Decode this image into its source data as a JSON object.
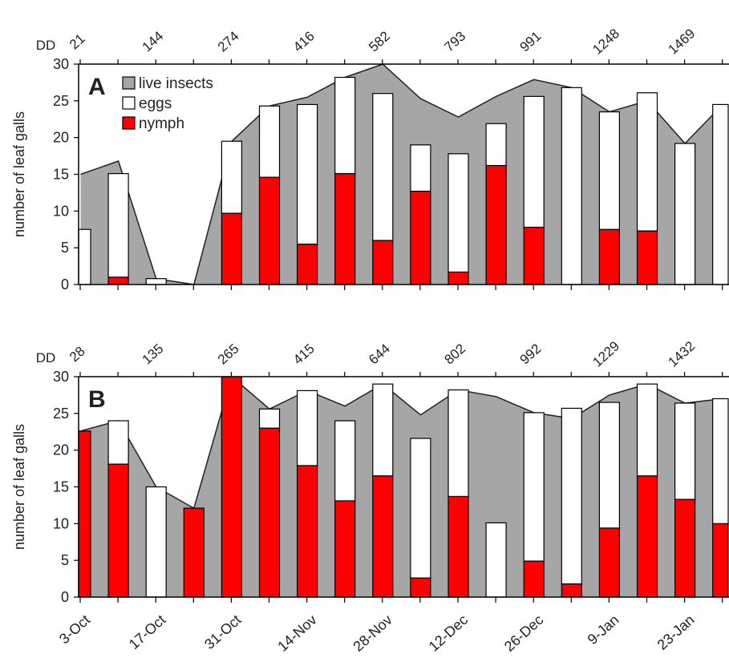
{
  "chart_data": [
    {
      "panel": "A",
      "type": "bar",
      "ylabel": "number of leaf galls",
      "ylim": [
        0,
        30
      ],
      "yticks": [
        0,
        5,
        10,
        15,
        20,
        25,
        30
      ],
      "dd_prefix": "DD",
      "dd_values": [
        "21",
        "144",
        "274",
        "416",
        "582",
        "793",
        "991",
        "1248",
        "1469"
      ],
      "legend": {
        "placement": "top-left",
        "items": [
          {
            "label": "live insects",
            "color": "#a6a6a6"
          },
          {
            "label": "eggs",
            "color": "#ffffff"
          },
          {
            "label": "nymph",
            "color": "#ff0000"
          }
        ]
      },
      "series": [
        {
          "name": "live insects",
          "values": [
            15,
            16.8,
            0.8,
            0,
            19.5,
            24.3,
            25.5,
            28.2,
            30,
            25.3,
            22.8,
            25.6,
            27.9,
            26.8,
            23.5,
            25,
            19.2,
            24.5
          ]
        },
        {
          "name": "eggs",
          "values": [
            7.5,
            14.1,
            0.8,
            null,
            9.8,
            9.7,
            19,
            13.1,
            20,
            6.3,
            16.1,
            5.7,
            17.8,
            26.8,
            16,
            18.8,
            19.2,
            24.5
          ]
        },
        {
          "name": "nymph",
          "values": [
            0,
            1,
            0,
            null,
            9.7,
            14.6,
            5.5,
            15.1,
            6,
            12.7,
            1.7,
            16.2,
            7.8,
            0,
            7.5,
            7.3,
            0,
            0
          ]
        }
      ]
    },
    {
      "panel": "B",
      "type": "bar",
      "ylabel": "number of leaf  galls",
      "ylim": [
        0,
        30
      ],
      "yticks": [
        0,
        5,
        10,
        15,
        20,
        25,
        30
      ],
      "dd_prefix": "DD",
      "dd_values": [
        "28",
        "135",
        "265",
        "415",
        "644",
        "802",
        "992",
        "1229",
        "1432"
      ],
      "x_labels": [
        "3-Oct",
        "17-Oct",
        "31-Oct",
        "14-Nov",
        "28-Nov",
        "12-Dec",
        "26-Dec",
        "9-Jan",
        "23-Jan"
      ],
      "series": [
        {
          "name": "live insects",
          "values": [
            22.6,
            24,
            15,
            12.1,
            30,
            25.6,
            28.1,
            26,
            29,
            24.8,
            28.2,
            27.3,
            25.1,
            24.3,
            27.5,
            29,
            26.4,
            27
          ]
        },
        {
          "name": "eggs",
          "values": [
            0,
            5.9,
            15,
            0,
            0,
            2.6,
            10.2,
            10.9,
            12.5,
            19,
            14.5,
            10.1,
            20.2,
            23.9,
            17.1,
            12.5,
            13.1,
            17
          ]
        },
        {
          "name": "nymph",
          "values": [
            22.6,
            18.1,
            0,
            12.1,
            30,
            23,
            17.9,
            13.1,
            16.5,
            2.6,
            13.7,
            0,
            4.9,
            1.8,
            9.4,
            16.5,
            13.3,
            10
          ]
        }
      ]
    }
  ]
}
